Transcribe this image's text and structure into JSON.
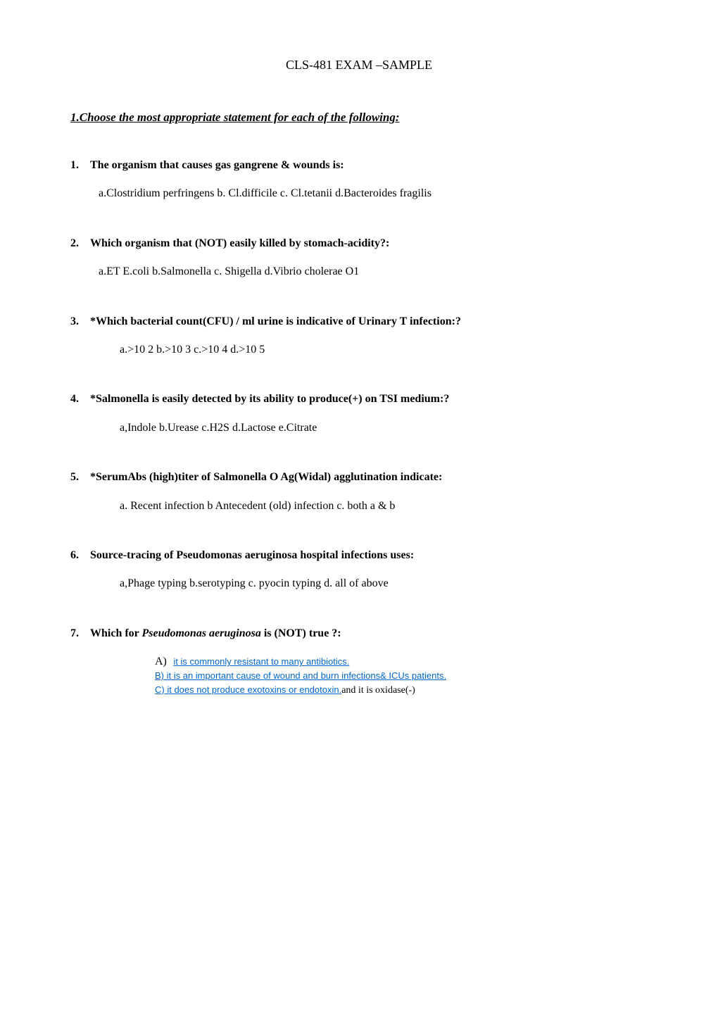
{
  "title": "CLS-481 EXAM –SAMPLE",
  "section_header": "1.Choose the most appropriate statement for each of the following:",
  "questions": [
    {
      "number": "1.",
      "text": "The organism that causes gas gangrene & wounds is:",
      "options": "  a.Clostridium perfringens    b. Cl.difficile    c. Cl.tetanii   d.Bacteroides fragilis",
      "options_class": "options"
    },
    {
      "number": "2.",
      "text": "Which organism that (NOT) easily killed by stomach-acidity?:",
      "options": "a.ET E.coli      b.Salmonella     c. Shigella     d.Vibrio cholerae O1",
      "options_class": "options"
    },
    {
      "number": "3.",
      "text": "*Which bacterial count(CFU) / ml urine is indicative of Urinary T infection:?",
      "options": "a.>10 2           b.>10 3            c.>10 4                   d.>10 5",
      "options_class": "options-indented"
    },
    {
      "number": "4.",
      "text": "*Salmonella is easily detected by its ability to produce(+) on TSI medium:?",
      "options": "a,Indole            b.Urease      c.H2S     d.Lactose       e.Citrate",
      "options_class": "options-indented"
    },
    {
      "number": "5.",
      "text": "*SerumAbs (high)titer of Salmonella O Ag(Widal) agglutination indicate:",
      "options": "a. Recent infection     b Antecedent (old) infection       c. both  a & b",
      "options_class": "options-indented"
    },
    {
      "number": "6.",
      "text": "Source-tracing of Pseudomonas aeruginosa hospital infections uses:",
      "options": "a,Phage typing    b.serotyping    c. pyocin typing     d. all of above",
      "options_class": "options-indented"
    }
  ],
  "question7": {
    "number": "7.",
    "prefix": "Which for ",
    "italic_text": "Pseudomonas aeruginosa",
    "suffix": " is (NOT) true ?:",
    "option_a_label": "A)",
    "option_a_link": "it is commonly resistant to many antibiotics.",
    "option_b_link": "B) it is an important cause of wound and burn infections& ICUs patients.",
    "option_c_link": "C) it does not produce exotoxins or endotoxin.",
    "option_c_suffix": "and it is oxidase(-)"
  }
}
